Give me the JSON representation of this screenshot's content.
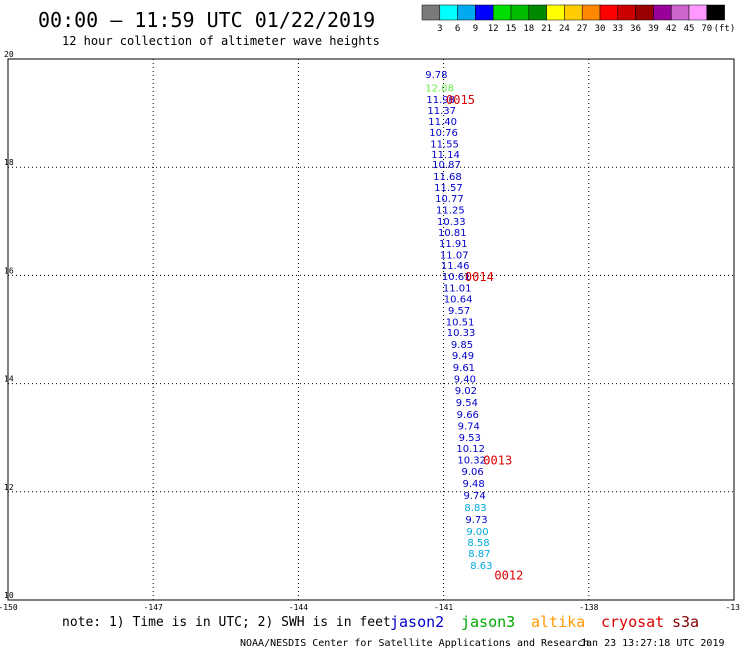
{
  "title": "00:00 – 11:59 UTC 01/22/2019",
  "subtitle": "12 hour collection of altimeter wave heights",
  "colorbar": {
    "colors": [
      "#7a7a7a",
      "#00ffff",
      "#00aaee",
      "#0000ff",
      "#00dd00",
      "#00bb00",
      "#008800",
      "#ffff00",
      "#ffcc00",
      "#ff8800",
      "#ff0000",
      "#cc0000",
      "#990000",
      "#990099",
      "#cc66cc",
      "#ff99ff",
      "#000000"
    ],
    "labels": [
      "3",
      "6",
      "9",
      "12",
      "15",
      "18",
      "21",
      "24",
      "27",
      "30",
      "33",
      "36",
      "39",
      "42",
      "45",
      "70"
    ],
    "unit": "(ft)"
  },
  "axes": {
    "x_ticks": [
      "-150",
      "-147",
      "-144",
      "-141",
      "-138",
      "-13"
    ],
    "y_ticks": [
      "10",
      "12",
      "14",
      "16",
      "18",
      "20"
    ]
  },
  "chart_data": {
    "type": "scatter",
    "title": "00:00 – 11:59 UTC 01/22/2019",
    "subtitle": "12 hour collection of altimeter wave heights",
    "xlabel": "",
    "ylabel": "",
    "xlim": [
      -150,
      -135
    ],
    "ylim": [
      10,
      20
    ],
    "grid": true,
    "series": [
      {
        "name": "jason2",
        "color": "#0000cc",
        "points": [
          {
            "lon": -141.15,
            "lat": 19.72,
            "swh": "9.78"
          },
          {
            "lon": -141.06,
            "lat": 19.26,
            "swh": "11.98"
          },
          {
            "lon": -141.04,
            "lat": 19.06,
            "swh": "11.37"
          },
          {
            "lon": -141.02,
            "lat": 18.85,
            "swh": "11.40"
          },
          {
            "lon": -141.0,
            "lat": 18.65,
            "swh": "10.76"
          },
          {
            "lon": -140.98,
            "lat": 18.44,
            "swh": "11.55"
          },
          {
            "lon": -140.96,
            "lat": 18.24,
            "swh": "11.14"
          },
          {
            "lon": -140.94,
            "lat": 18.06,
            "swh": "10.87"
          },
          {
            "lon": -140.92,
            "lat": 17.84,
            "swh": "11.68"
          },
          {
            "lon": -140.9,
            "lat": 17.63,
            "swh": "11.57"
          },
          {
            "lon": -140.88,
            "lat": 17.43,
            "swh": "10.77"
          },
          {
            "lon": -140.86,
            "lat": 17.22,
            "swh": "11.25"
          },
          {
            "lon": -140.84,
            "lat": 17.01,
            "swh": "10.33"
          },
          {
            "lon": -140.82,
            "lat": 16.8,
            "swh": "10.81"
          },
          {
            "lon": -140.8,
            "lat": 16.6,
            "swh": "11.91"
          },
          {
            "lon": -140.78,
            "lat": 16.39,
            "swh": "11.07"
          },
          {
            "lon": -140.76,
            "lat": 16.19,
            "swh": "11.46"
          },
          {
            "lon": -140.74,
            "lat": 15.99,
            "swh": "10.61"
          },
          {
            "lon": -140.72,
            "lat": 15.78,
            "swh": "11.01"
          },
          {
            "lon": -140.7,
            "lat": 15.57,
            "swh": "10.64"
          },
          {
            "lon": -140.68,
            "lat": 15.36,
            "swh": "9.57"
          },
          {
            "lon": -140.66,
            "lat": 15.15,
            "swh": "10.51"
          },
          {
            "lon": -140.64,
            "lat": 14.95,
            "swh": "10.33"
          },
          {
            "lon": -140.62,
            "lat": 14.73,
            "swh": "9.85"
          },
          {
            "lon": -140.6,
            "lat": 14.53,
            "swh": "9.49"
          },
          {
            "lon": -140.58,
            "lat": 14.31,
            "swh": "9.61"
          },
          {
            "lon": -140.56,
            "lat": 14.09,
            "swh": "9.40"
          },
          {
            "lon": -140.54,
            "lat": 13.88,
            "swh": "9.02"
          },
          {
            "lon": -140.52,
            "lat": 13.66,
            "swh": "9.54"
          },
          {
            "lon": -140.5,
            "lat": 13.44,
            "swh": "9.66"
          },
          {
            "lon": -140.48,
            "lat": 13.23,
            "swh": "9.74"
          },
          {
            "lon": -140.46,
            "lat": 13.01,
            "swh": "9.53"
          },
          {
            "lon": -140.44,
            "lat": 12.81,
            "swh": "10.12"
          },
          {
            "lon": -140.42,
            "lat": 12.6,
            "swh": "10.32"
          },
          {
            "lon": -140.4,
            "lat": 12.38,
            "swh": "9.06"
          },
          {
            "lon": -140.38,
            "lat": 12.16,
            "swh": "9.48"
          },
          {
            "lon": -140.36,
            "lat": 11.94,
            "swh": "9.74"
          },
          {
            "lon": -140.32,
            "lat": 11.5,
            "swh": "9.73"
          }
        ]
      },
      {
        "name": "jason3",
        "color": "#66ee44",
        "points": [
          {
            "lon": -141.08,
            "lat": 19.47,
            "swh": "12.08"
          }
        ]
      },
      {
        "name": "altika",
        "color": "#00aadd",
        "points": [
          {
            "lon": -140.34,
            "lat": 11.72,
            "swh": "8.83"
          },
          {
            "lon": -140.3,
            "lat": 11.28,
            "swh": "9.00"
          },
          {
            "lon": -140.28,
            "lat": 11.07,
            "swh": "8.58"
          },
          {
            "lon": -140.26,
            "lat": 10.87,
            "swh": "8.87"
          },
          {
            "lon": -140.22,
            "lat": 10.65,
            "swh": "8.63"
          }
        ]
      }
    ],
    "time_labels": [
      {
        "text": "0015",
        "lon": -140.95,
        "lat": 19.26
      },
      {
        "text": "0014",
        "lon": -140.56,
        "lat": 15.99
      },
      {
        "text": "0013",
        "lon": -140.18,
        "lat": 12.6
      },
      {
        "text": "0012",
        "lon": -139.95,
        "lat": 10.47
      }
    ]
  },
  "footer": {
    "note": "note: 1) Time is in UTC; 2) SWH is in feet",
    "satellites": [
      {
        "name": "jason2",
        "color": "#0000cc"
      },
      {
        "name": "jason3",
        "color": "#00aa00"
      },
      {
        "name": "altika",
        "color": "#ff9900"
      },
      {
        "name": "cryosat",
        "color": "#dd0000"
      },
      {
        "name": "s3a",
        "color": "#880000"
      }
    ],
    "credit": "NOAA/NESDIS Center for Satellite Applications and Research",
    "timestamp": "Jan 23 13:27:18 UTC 2019"
  }
}
